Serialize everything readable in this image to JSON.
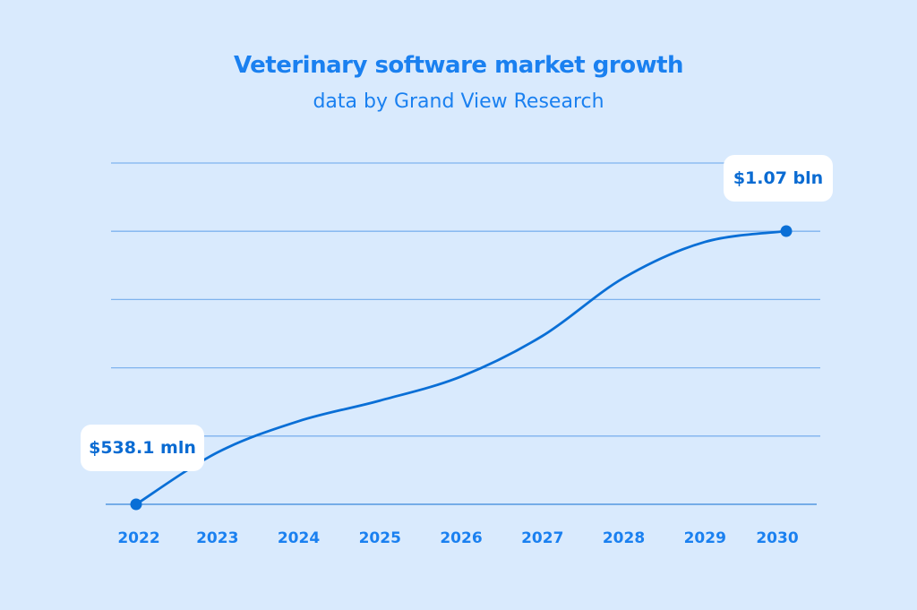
{
  "chart_data": {
    "type": "line",
    "title": "Veterinary software market growth",
    "subtitle": "data by Grand View Research",
    "categories": [
      "2022",
      "2023",
      "2024",
      "2025",
      "2026",
      "2027",
      "2028",
      "2029",
      "2030"
    ],
    "series": [
      {
        "values": [
          538.1,
          639,
          700,
          740,
          787,
          866,
          979,
          1049,
          1070
        ]
      }
    ],
    "unit": "$ mln",
    "annotations": [
      {
        "category": "2022",
        "text": "$538.1 mln"
      },
      {
        "category": "2030",
        "text": "$1.07 bln"
      }
    ],
    "ylim": [
      538.1,
      1202.6
    ],
    "grid": true,
    "gridlines": 6,
    "xlabel": "",
    "ylabel": "",
    "colors": {
      "background": "#d9eafd",
      "line": "#0a6fd6",
      "grid": "#7fb3ee",
      "text": "#1a80f0"
    }
  }
}
